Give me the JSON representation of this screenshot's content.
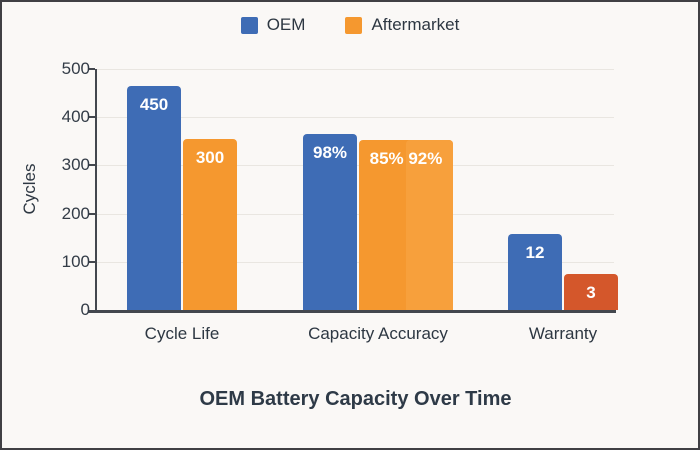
{
  "page": {
    "background": "#faf8f6",
    "border_color": "#404044"
  },
  "legend": [
    {
      "label": "OEM",
      "color": "#3e6cb5"
    },
    {
      "label": "Aftermarket",
      "color": "#f5982f"
    }
  ],
  "chart_data": {
    "type": "bar",
    "title": "OEM Battery Capacity Over Time",
    "ylabel": "Cycles",
    "xlabel": "",
    "ylim": [
      0,
      500
    ],
    "yticks": [
      0,
      100,
      200,
      300,
      400,
      500
    ],
    "grid": true,
    "legend_position": "top",
    "legend_entries": [
      "OEM",
      "Aftermarket"
    ],
    "groups": [
      {
        "category": "Cycle Life",
        "bars": [
          {
            "series": "OEM",
            "label": "450",
            "value": 450,
            "drawn_cycles": 465,
            "color": "#3e6cb5"
          },
          {
            "series": "Aftermarket",
            "label": "300",
            "value": 300,
            "drawn_cycles": 355,
            "color": "#f5982f"
          }
        ]
      },
      {
        "category": "Capacity Accuracy",
        "bars": [
          {
            "series": "OEM",
            "label": "98%",
            "value": 98,
            "drawn_cycles": 365,
            "color": "#3e6cb5"
          },
          {
            "series": "Aftermarket",
            "label": "85% 92%",
            "value": "85, 92",
            "drawn_cycles": 352,
            "color": "#f5982f",
            "color2": "#f7a03c",
            "wide": true
          }
        ]
      },
      {
        "category": "Warranty",
        "bars": [
          {
            "series": "OEM",
            "label": "12",
            "value": 12,
            "drawn_cycles": 158,
            "color": "#3e6cb5"
          },
          {
            "series": "Aftermarket",
            "label": "3",
            "value": 3,
            "drawn_cycles": 75,
            "color": "#d4572b"
          }
        ]
      }
    ]
  }
}
